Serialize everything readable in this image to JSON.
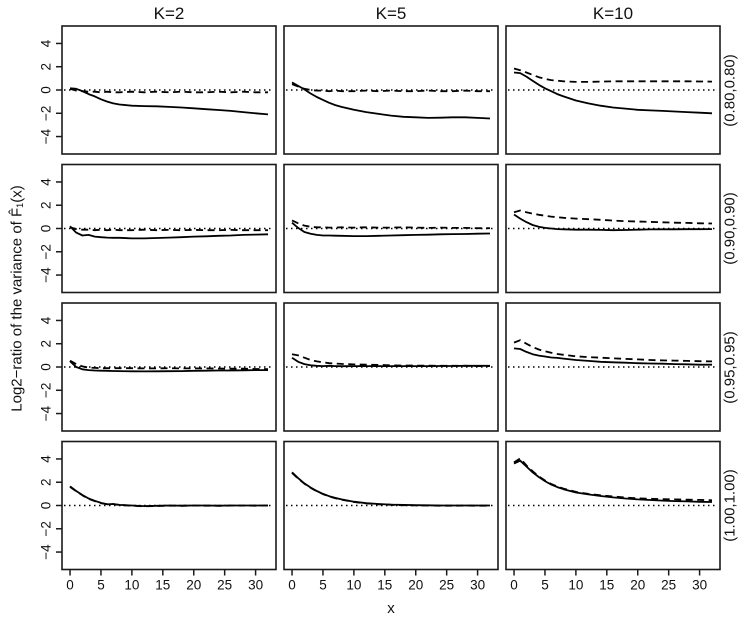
{
  "chart_data": {
    "type": "line",
    "title": "",
    "column_titles": [
      "K=2",
      "K=5",
      "K=10"
    ],
    "row_labels": [
      "(0.80,0.80)",
      "(0.90,0.90)",
      "(0.95,0.95)",
      "(1.00,1.00)"
    ],
    "xlabel": "x",
    "ylabel": "Log2−ratio of the variance of F̂₁(x)",
    "x_ticks": [
      0,
      5,
      10,
      15,
      20,
      25,
      30
    ],
    "y_ticks": [
      -4,
      -2,
      0,
      2,
      4
    ],
    "xlim": [
      -1.3,
      33.3
    ],
    "ylim": [
      -5.5,
      5.5
    ],
    "reference_line_y": 0,
    "grid": false,
    "legend": "none",
    "line_color": "#000000",
    "series_styles": [
      "solid",
      "dashed",
      "dotted-reference"
    ],
    "x": [
      0,
      1,
      2,
      3,
      4,
      5,
      6,
      7,
      8,
      10,
      12,
      14,
      16,
      18,
      20,
      22,
      24,
      26,
      28,
      30,
      32
    ],
    "panels": [
      {
        "row": 0,
        "col": 0,
        "solid": [
          0.15,
          0.1,
          -0.1,
          -0.35,
          -0.55,
          -0.8,
          -1.0,
          -1.15,
          -1.25,
          -1.35,
          -1.38,
          -1.4,
          -1.45,
          -1.5,
          -1.57,
          -1.65,
          -1.72,
          -1.8,
          -1.9,
          -2.0,
          -2.1
        ],
        "dashed": [
          0.1,
          -0.05,
          -0.1,
          -0.15,
          -0.15,
          -0.2,
          -0.15,
          -0.2,
          -0.2,
          -0.15,
          -0.2,
          -0.15,
          -0.2,
          -0.15,
          -0.2,
          -0.2,
          -0.15,
          -0.2,
          -0.15,
          -0.2,
          -0.2
        ]
      },
      {
        "row": 0,
        "col": 1,
        "solid": [
          0.65,
          0.35,
          0.05,
          -0.3,
          -0.6,
          -0.85,
          -1.1,
          -1.3,
          -1.45,
          -1.7,
          -1.9,
          -2.05,
          -2.2,
          -2.3,
          -2.35,
          -2.4,
          -2.38,
          -2.35,
          -2.35,
          -2.4,
          -2.45
        ],
        "dashed": [
          0.5,
          0.3,
          0.1,
          0.0,
          -0.05,
          -0.05,
          -0.1,
          -0.05,
          -0.1,
          -0.1,
          -0.05,
          -0.1,
          -0.05,
          -0.1,
          -0.1,
          -0.05,
          -0.1,
          -0.1,
          -0.05,
          -0.1,
          -0.1
        ]
      },
      {
        "row": 0,
        "col": 2,
        "solid": [
          1.5,
          1.45,
          1.15,
          0.8,
          0.45,
          0.15,
          -0.1,
          -0.35,
          -0.55,
          -0.9,
          -1.15,
          -1.35,
          -1.5,
          -1.6,
          -1.7,
          -1.75,
          -1.8,
          -1.85,
          -1.9,
          -1.95,
          -2.0
        ],
        "dashed": [
          1.85,
          1.7,
          1.5,
          1.3,
          1.1,
          0.95,
          0.85,
          0.8,
          0.75,
          0.7,
          0.7,
          0.72,
          0.75,
          0.75,
          0.75,
          0.75,
          0.75,
          0.75,
          0.75,
          0.73,
          0.72
        ]
      },
      {
        "row": 1,
        "col": 0,
        "solid": [
          0.2,
          -0.35,
          -0.6,
          -0.55,
          -0.7,
          -0.75,
          -0.78,
          -0.8,
          -0.8,
          -0.85,
          -0.85,
          -0.82,
          -0.78,
          -0.75,
          -0.7,
          -0.67,
          -0.63,
          -0.6,
          -0.55,
          -0.52,
          -0.5
        ],
        "dashed": [
          0.1,
          -0.05,
          -0.1,
          -0.1,
          -0.15,
          -0.1,
          -0.15,
          -0.1,
          -0.15,
          -0.15,
          -0.1,
          -0.15,
          -0.12,
          -0.15,
          -0.12,
          -0.15,
          -0.15,
          -0.12,
          -0.15,
          -0.15,
          -0.15
        ]
      },
      {
        "row": 1,
        "col": 1,
        "solid": [
          0.5,
          0.05,
          -0.3,
          -0.45,
          -0.55,
          -0.6,
          -0.6,
          -0.62,
          -0.63,
          -0.65,
          -0.65,
          -0.63,
          -0.6,
          -0.58,
          -0.55,
          -0.53,
          -0.5,
          -0.48,
          -0.47,
          -0.45,
          -0.43
        ],
        "dashed": [
          0.7,
          0.45,
          0.25,
          0.15,
          0.1,
          0.1,
          0.08,
          0.08,
          0.1,
          0.08,
          0.1,
          0.08,
          0.08,
          0.1,
          0.08,
          0.05,
          0.08,
          0.05,
          0.05,
          0.03,
          0.03
        ]
      },
      {
        "row": 1,
        "col": 2,
        "solid": [
          1.2,
          0.85,
          0.55,
          0.3,
          0.15,
          0.05,
          0.0,
          -0.05,
          -0.07,
          -0.1,
          -0.1,
          -0.12,
          -0.15,
          -0.13,
          -0.1,
          -0.08,
          -0.07,
          -0.07,
          -0.06,
          -0.06,
          -0.05
        ],
        "dashed": [
          1.4,
          1.55,
          1.4,
          1.28,
          1.18,
          1.1,
          1.02,
          0.97,
          0.92,
          0.85,
          0.8,
          0.75,
          0.68,
          0.63,
          0.6,
          0.57,
          0.53,
          0.5,
          0.48,
          0.45,
          0.43
        ]
      },
      {
        "row": 2,
        "col": 0,
        "solid": [
          0.5,
          0.0,
          -0.2,
          -0.27,
          -0.3,
          -0.32,
          -0.33,
          -0.34,
          -0.35,
          -0.37,
          -0.38,
          -0.37,
          -0.36,
          -0.35,
          -0.33,
          -0.32,
          -0.3,
          -0.3,
          -0.28,
          -0.27,
          -0.27
        ],
        "dashed": [
          0.55,
          0.25,
          0.05,
          -0.05,
          -0.08,
          -0.1,
          -0.1,
          -0.1,
          -0.1,
          -0.1,
          -0.12,
          -0.12,
          -0.1,
          -0.12,
          -0.12,
          -0.12,
          -0.13,
          -0.15,
          -0.15,
          -0.17,
          -0.18
        ]
      },
      {
        "row": 2,
        "col": 1,
        "solid": [
          0.8,
          0.45,
          0.25,
          0.15,
          0.1,
          0.08,
          0.1,
          0.08,
          0.07,
          0.08,
          0.08,
          0.08,
          0.08,
          0.08,
          0.08,
          0.08,
          0.09,
          0.09,
          0.1,
          0.1,
          0.1
        ],
        "dashed": [
          1.1,
          1.0,
          0.8,
          0.6,
          0.48,
          0.4,
          0.33,
          0.3,
          0.27,
          0.22,
          0.2,
          0.18,
          0.15,
          0.13,
          0.12,
          0.12,
          0.1,
          0.1,
          0.1,
          0.08,
          0.08
        ]
      },
      {
        "row": 2,
        "col": 2,
        "solid": [
          1.6,
          1.55,
          1.3,
          1.1,
          0.98,
          0.9,
          0.82,
          0.78,
          0.72,
          0.6,
          0.52,
          0.45,
          0.4,
          0.37,
          0.33,
          0.3,
          0.28,
          0.25,
          0.23,
          0.2,
          0.2
        ],
        "dashed": [
          2.1,
          2.3,
          2.0,
          1.72,
          1.5,
          1.35,
          1.22,
          1.12,
          1.05,
          0.92,
          0.85,
          0.8,
          0.75,
          0.7,
          0.65,
          0.6,
          0.57,
          0.55,
          0.52,
          0.5,
          0.48
        ]
      },
      {
        "row": 3,
        "col": 0,
        "solid": [
          1.65,
          1.25,
          0.9,
          0.6,
          0.4,
          0.22,
          0.1,
          0.13,
          0.05,
          0.0,
          -0.05,
          -0.03,
          0.0,
          -0.02,
          0.0,
          0.0,
          -0.02,
          0.0,
          0.0,
          0.0,
          0.0
        ],
        "dashed": [
          1.6,
          1.22,
          0.88,
          0.58,
          0.38,
          0.2,
          0.1,
          0.12,
          0.04,
          -0.02,
          -0.07,
          -0.04,
          -0.02,
          -0.03,
          -0.01,
          -0.02,
          -0.03,
          -0.01,
          -0.01,
          -0.02,
          0.0
        ]
      },
      {
        "row": 3,
        "col": 1,
        "solid": [
          2.85,
          2.35,
          1.9,
          1.55,
          1.25,
          1.0,
          0.8,
          0.65,
          0.52,
          0.33,
          0.2,
          0.13,
          0.08,
          0.05,
          0.03,
          0.02,
          0.0,
          0.0,
          0.0,
          0.0,
          0.0
        ],
        "dashed": [
          2.8,
          2.3,
          1.87,
          1.52,
          1.22,
          0.98,
          0.78,
          0.63,
          0.5,
          0.3,
          0.18,
          0.1,
          0.06,
          0.03,
          0.01,
          0.0,
          -0.02,
          -0.02,
          -0.01,
          -0.02,
          -0.02
        ]
      },
      {
        "row": 3,
        "col": 2,
        "solid": [
          3.6,
          3.85,
          3.35,
          2.85,
          2.45,
          2.1,
          1.8,
          1.58,
          1.4,
          1.12,
          0.95,
          0.82,
          0.7,
          0.6,
          0.52,
          0.47,
          0.42,
          0.38,
          0.35,
          0.32,
          0.3
        ],
        "dashed": [
          3.7,
          4.05,
          3.45,
          2.95,
          2.5,
          2.15,
          1.85,
          1.62,
          1.45,
          1.17,
          1.0,
          0.88,
          0.78,
          0.68,
          0.62,
          0.58,
          0.55,
          0.52,
          0.5,
          0.48,
          0.45
        ]
      }
    ]
  }
}
